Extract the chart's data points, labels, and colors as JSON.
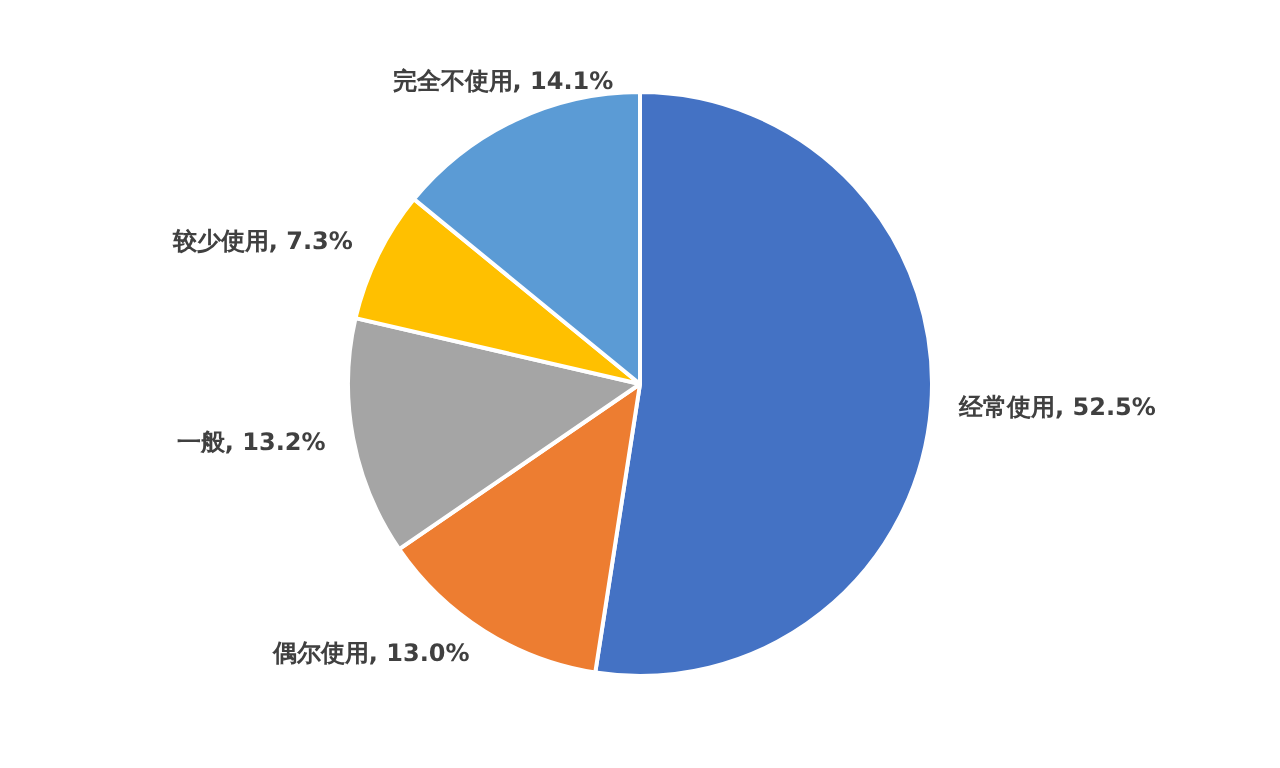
{
  "chart_data": {
    "type": "pie",
    "categories": [
      "经常使用",
      "偶尔使用",
      "一般",
      "较少使用",
      "完全不使用"
    ],
    "values": [
      52.5,
      13.0,
      13.2,
      7.3,
      14.1
    ],
    "value_labels": [
      "52.5%",
      "13.0%",
      "13.2%",
      "7.3%",
      "14.1%"
    ],
    "colors": [
      "#4472c4",
      "#ed7d31",
      "#a5a5a5",
      "#ffc000",
      "#5b9bd5"
    ],
    "legend": false
  }
}
